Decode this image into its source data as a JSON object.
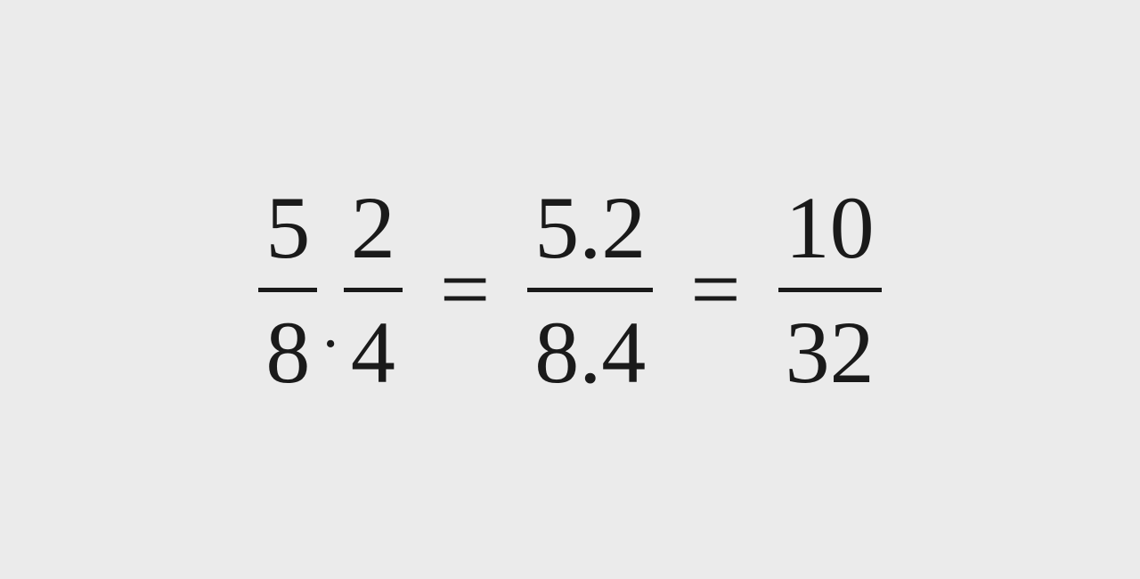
{
  "equation": {
    "type": "math-expression",
    "text_color": "#1a1a1a",
    "background_color": "#ebebeb",
    "font_size": 100,
    "fraction_line_thickness": 5,
    "fraction1": {
      "numerator": "5",
      "denominator": "8"
    },
    "operator1": ".",
    "fraction2": {
      "numerator": "2",
      "denominator": "4"
    },
    "equals1": "=",
    "fraction3": {
      "numerator": "5.2",
      "denominator": "8.4"
    },
    "equals2": "=",
    "fraction4": {
      "numerator": "10",
      "denominator": "32"
    }
  }
}
